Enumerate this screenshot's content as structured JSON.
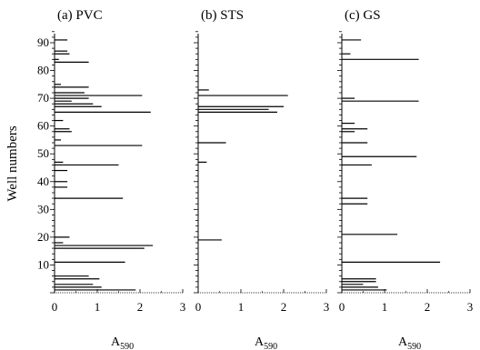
{
  "chart_data": {
    "type": "bar",
    "orientation": "horizontal",
    "ylabel": "Well numbers",
    "yticks": [
      10,
      20,
      30,
      40,
      50,
      60,
      70,
      80,
      90
    ],
    "ylim": [
      0,
      96
    ],
    "xticks": [
      0,
      1,
      2,
      3
    ],
    "xlim": [
      0,
      3
    ],
    "grid": false,
    "panels": [
      {
        "title": "(a) PVC",
        "xlabel_main": "A",
        "xlabel_sub": "590",
        "wells": [
          1,
          2,
          3,
          5,
          6,
          11,
          16,
          17,
          18,
          20,
          34,
          38,
          40,
          44,
          46,
          47,
          53,
          55,
          58,
          59,
          62,
          65,
          67,
          68,
          69,
          70,
          71,
          72,
          74,
          75,
          83,
          84,
          86,
          87,
          91
        ],
        "values": [
          1.9,
          1.1,
          0.9,
          1.05,
          0.8,
          1.65,
          2.1,
          2.3,
          0.2,
          0.35,
          1.6,
          0.3,
          0.3,
          0.3,
          1.5,
          0.2,
          2.05,
          0.15,
          0.4,
          0.35,
          0.2,
          2.25,
          1.1,
          0.9,
          0.4,
          0.8,
          2.05,
          0.7,
          0.8,
          0.15,
          0.8,
          0.1,
          0.35,
          0.3,
          0.3
        ]
      },
      {
        "title": "(b) STS",
        "xlabel_main": "A",
        "xlabel_sub": "590",
        "wells": [
          19,
          47,
          54,
          65,
          66,
          67,
          71,
          73
        ],
        "values": [
          0.55,
          0.2,
          0.65,
          1.85,
          1.65,
          2.0,
          2.1,
          0.25
        ]
      },
      {
        "title": "(c) GS",
        "xlabel_main": "A",
        "xlabel_sub": "590",
        "wells": [
          1,
          2,
          3,
          4,
          5,
          11,
          21,
          32,
          34,
          46,
          49,
          54,
          58,
          59,
          61,
          69,
          70,
          84,
          86,
          91
        ],
        "values": [
          1.05,
          0.85,
          0.5,
          0.8,
          0.8,
          2.3,
          1.3,
          0.6,
          0.6,
          0.7,
          1.75,
          0.6,
          0.3,
          0.6,
          0.3,
          1.8,
          0.3,
          1.8,
          0.2,
          0.45
        ]
      }
    ]
  }
}
